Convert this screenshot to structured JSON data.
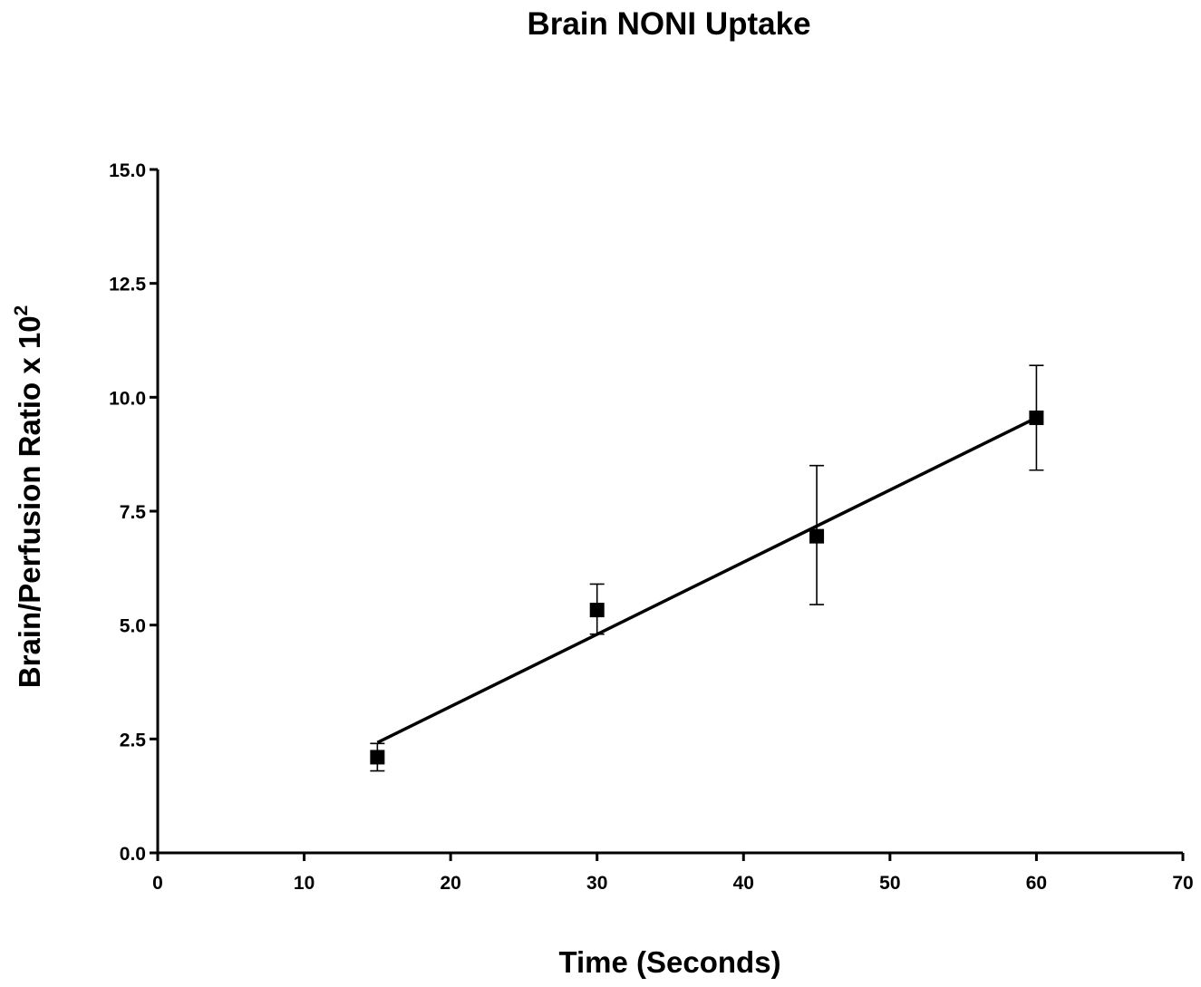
{
  "chart_data": {
    "type": "scatter",
    "title": "Brain NONI Uptake",
    "xlabel": "Time (Seconds)",
    "ylabel_main": "Brain/Perfusion Ratio x 10",
    "ylabel_superscript": "2",
    "xlim": [
      0,
      70
    ],
    "ylim": [
      0,
      15
    ],
    "x_ticks": [
      "0",
      "10",
      "20",
      "30",
      "40",
      "50",
      "60",
      "70"
    ],
    "y_ticks": [
      "0.0",
      "2.5",
      "5.0",
      "7.5",
      "10.0",
      "12.5",
      "15.0"
    ],
    "grid": false,
    "legend": "none",
    "series": [
      {
        "marker": "square",
        "color": "#000000",
        "points": [
          {
            "x": 15,
            "y": 2.1,
            "err_low": 1.8,
            "err_high": 2.4
          },
          {
            "x": 30,
            "y": 5.33,
            "err_low": 4.8,
            "err_high": 5.9
          },
          {
            "x": 45,
            "y": 6.95,
            "err_low": 5.45,
            "err_high": 8.5
          },
          {
            "x": 60,
            "y": 9.55,
            "err_low": 8.4,
            "err_high": 10.7
          }
        ]
      }
    ],
    "fit_line": {
      "x_start": 15,
      "y_start": 2.42,
      "x_end": 60,
      "y_end": 9.55,
      "color": "#000000"
    }
  }
}
